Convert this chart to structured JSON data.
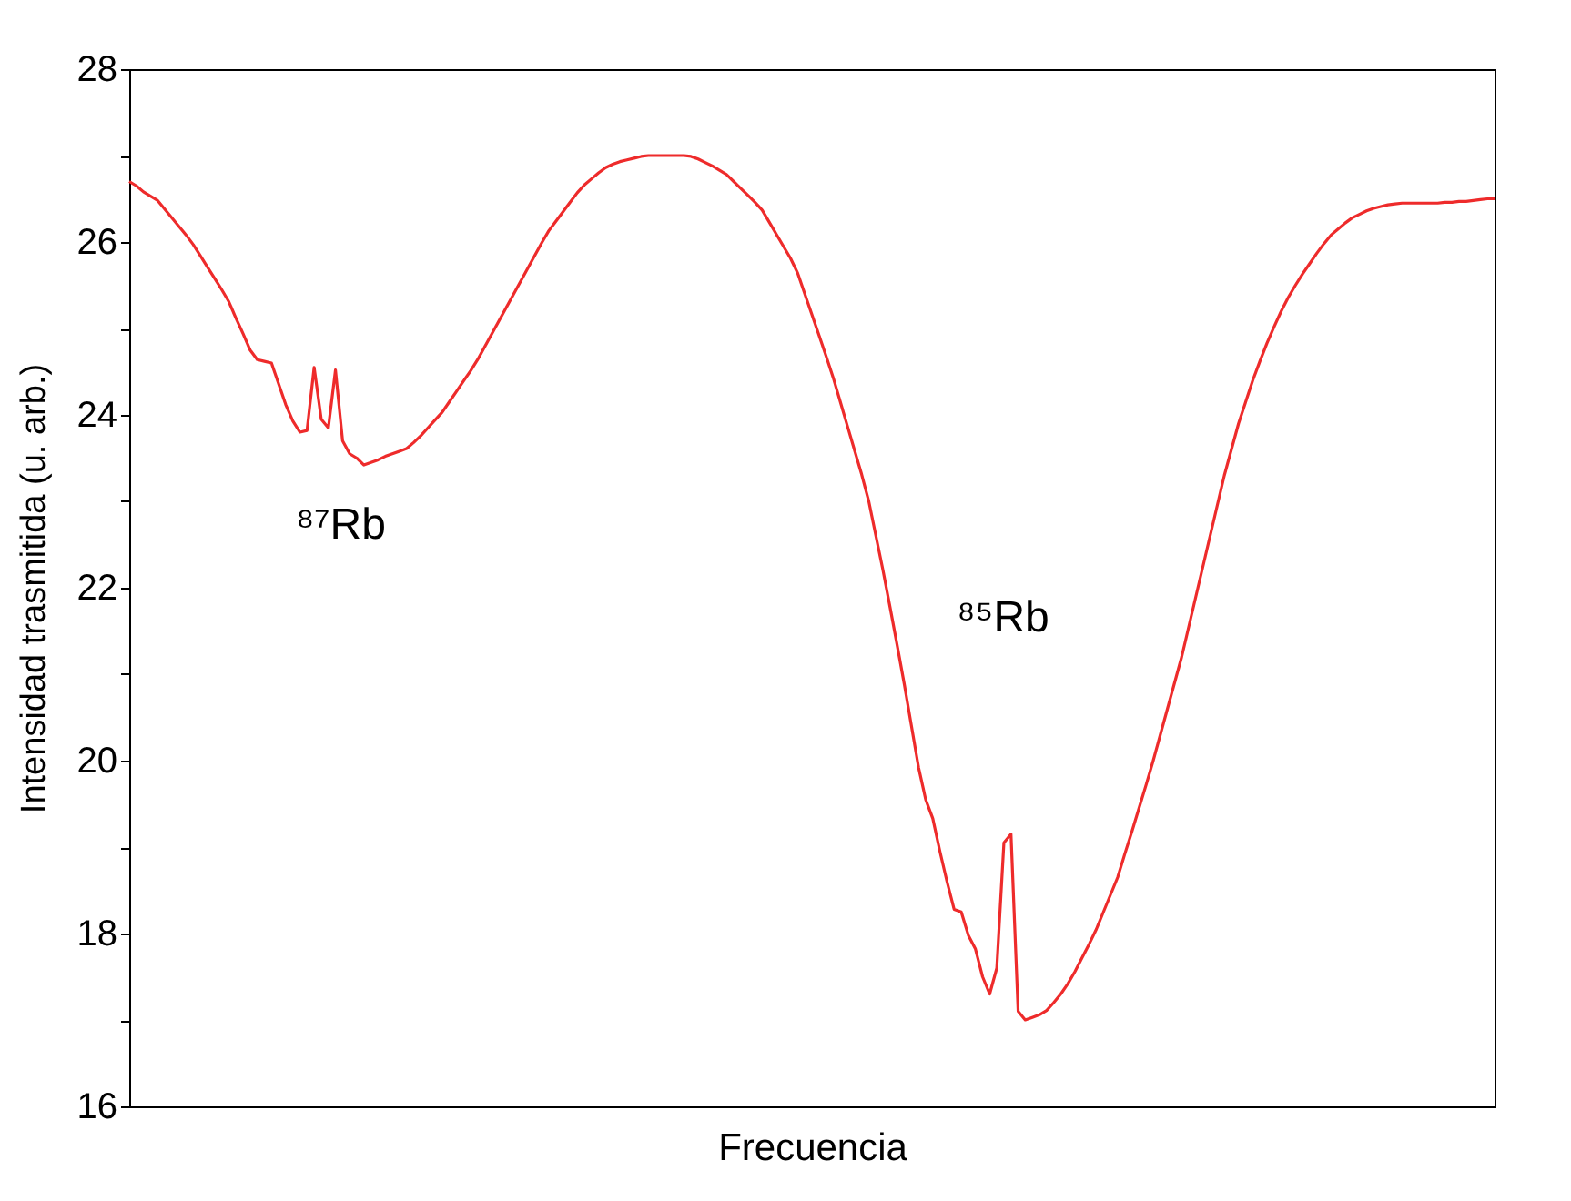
{
  "chart_data": {
    "type": "line",
    "xlabel": "Frecuencia",
    "ylabel": "Intensidad trasmitida (u. arb.)",
    "categories": [
      null,
      null,
      null,
      null,
      null,
      null,
      null,
      null,
      null,
      null,
      null,
      null,
      null,
      null,
      null,
      null,
      null,
      null,
      null,
      null,
      null,
      null,
      null,
      null,
      null,
      null,
      null,
      null,
      null,
      null,
      null,
      null,
      null,
      null,
      null,
      null,
      null,
      null,
      null,
      null,
      null,
      null,
      null,
      null,
      null,
      null,
      null,
      null,
      null,
      null,
      null,
      null,
      null,
      null,
      null,
      null,
      null,
      null,
      null,
      null,
      null,
      null,
      null,
      null,
      null,
      null,
      null,
      null,
      null,
      null,
      null,
      null,
      null,
      null,
      null,
      null,
      null,
      null,
      null,
      null,
      null,
      null,
      null,
      null,
      null,
      null,
      null,
      null,
      null,
      null,
      null,
      null,
      null,
      null,
      null,
      null,
      null,
      null,
      null,
      null,
      null,
      null,
      null,
      null,
      null,
      null,
      null,
      null,
      null,
      null,
      null,
      null,
      null,
      null,
      null,
      null,
      null,
      null,
      null,
      null,
      null,
      null,
      null,
      null,
      null,
      null,
      null,
      null,
      null,
      null,
      null,
      null,
      null,
      null,
      null,
      null,
      null,
      null,
      null,
      null,
      null,
      null,
      null,
      null,
      null,
      null,
      null,
      null,
      null,
      null,
      null,
      null,
      null,
      null,
      null,
      null,
      null,
      null,
      null,
      null,
      null,
      null,
      null,
      null,
      null,
      null,
      null,
      null,
      null,
      null,
      null,
      null,
      null,
      null,
      null,
      null,
      null,
      null,
      null,
      null,
      null,
      null,
      null,
      null,
      null,
      null,
      null,
      null,
      null,
      null,
      null,
      null,
      null
    ],
    "series": [
      {
        "color": "#ee2b2b",
        "values": [
          26.7,
          26.65,
          26.58,
          26.53,
          26.48,
          26.38,
          26.28,
          26.18,
          26.08,
          25.97,
          25.84,
          25.71,
          25.58,
          25.45,
          25.31,
          25.12,
          24.94,
          24.75,
          24.64,
          24.62,
          24.6,
          24.36,
          24.12,
          23.93,
          23.8,
          23.82,
          24.55,
          23.95,
          23.85,
          24.52,
          23.7,
          23.55,
          23.5,
          23.42,
          23.45,
          23.48,
          23.52,
          23.55,
          23.58,
          23.61,
          23.68,
          23.76,
          23.85,
          23.94,
          24.03,
          24.15,
          24.27,
          24.39,
          24.51,
          24.64,
          24.79,
          24.94,
          25.09,
          25.24,
          25.39,
          25.54,
          25.69,
          25.84,
          25.99,
          26.13,
          26.24,
          26.35,
          26.46,
          26.57,
          26.66,
          26.73,
          26.8,
          26.86,
          26.9,
          26.93,
          26.95,
          26.97,
          26.99,
          27.0,
          27.0,
          27.0,
          27.0,
          27.0,
          27.0,
          26.99,
          26.96,
          26.92,
          26.88,
          26.83,
          26.78,
          26.7,
          26.62,
          26.54,
          26.46,
          26.37,
          26.23,
          26.09,
          25.95,
          25.81,
          25.64,
          25.4,
          25.16,
          24.92,
          24.68,
          24.43,
          24.15,
          23.87,
          23.59,
          23.31,
          23.0,
          22.6,
          22.2,
          21.77,
          21.33,
          20.88,
          20.4,
          19.92,
          19.55,
          19.33,
          18.95,
          18.6,
          18.28,
          18.25,
          17.98,
          17.82,
          17.5,
          17.3,
          17.6,
          19.05,
          19.15,
          17.1,
          17.0,
          17.03,
          17.06,
          17.11,
          17.2,
          17.3,
          17.42,
          17.56,
          17.72,
          17.88,
          18.05,
          18.25,
          18.45,
          18.65,
          18.92,
          19.18,
          19.45,
          19.72,
          20.0,
          20.3,
          20.6,
          20.9,
          21.2,
          21.55,
          21.9,
          22.25,
          22.6,
          22.95,
          23.3,
          23.6,
          23.9,
          24.15,
          24.4,
          24.62,
          24.83,
          25.02,
          25.2,
          25.36,
          25.5,
          25.63,
          25.75,
          25.87,
          25.98,
          26.08,
          26.15,
          26.22,
          26.28,
          26.32,
          26.36,
          26.39,
          26.41,
          26.43,
          26.44,
          26.45,
          26.45,
          26.45,
          26.45,
          26.45,
          26.45,
          26.46,
          26.46,
          26.47,
          26.47,
          26.48,
          26.49,
          26.5,
          26.5
        ]
      }
    ],
    "ylim": [
      16,
      28
    ],
    "yticks": [
      16,
      {
        "value": 17,
        "label": null
      },
      18,
      {
        "value": 19,
        "label": null
      },
      20,
      {
        "value": 21,
        "label": null
      },
      22,
      {
        "value": 23,
        "label": null
      },
      24,
      {
        "value": 25,
        "label": null
      },
      26,
      {
        "value": 27,
        "label": null
      },
      28
    ],
    "annotations": [
      "⁸⁷Rb",
      "⁸⁵Rb"
    ],
    "tick_labels": "y",
    "grid": false,
    "legend": false,
    "line_style": "solid",
    "marker": "none"
  }
}
